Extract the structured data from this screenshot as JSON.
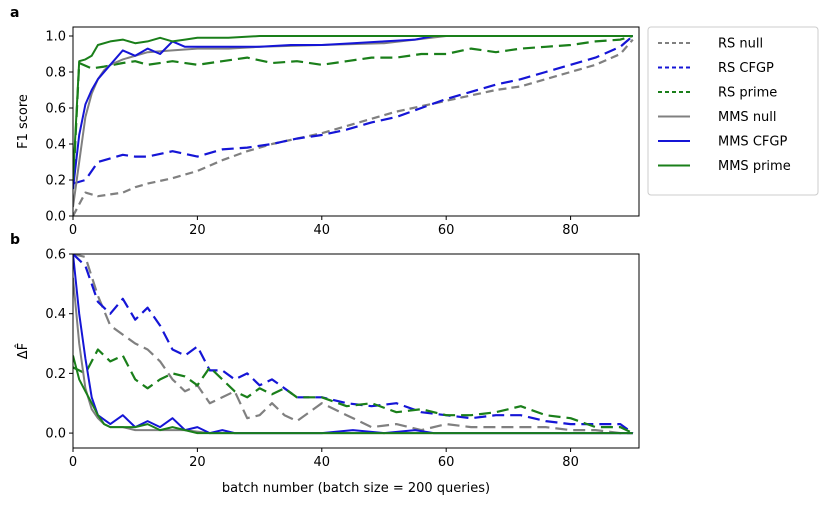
{
  "chart_data": [
    {
      "type": "line",
      "panel_label": "a",
      "xlabel": "",
      "ylabel": "F1 score",
      "xlim": [
        0,
        91
      ],
      "ylim": [
        0,
        1.05
      ],
      "xticks": [
        0,
        20,
        40,
        60,
        80
      ],
      "yticks": [
        0.0,
        0.2,
        0.4,
        0.6,
        0.8,
        1.0
      ],
      "xtick_labels": [
        "0",
        "20",
        "40",
        "60",
        "80"
      ],
      "ytick_labels": [
        "0.0",
        "0.2",
        "0.4",
        "0.6",
        "0.8",
        "1.0"
      ],
      "series": [
        {
          "name": "RS null",
          "color": "#808080",
          "dash": "dotted-dash",
          "x": [
            0,
            2,
            4,
            6,
            8,
            10,
            12,
            16,
            20,
            24,
            28,
            32,
            36,
            40,
            44,
            48,
            52,
            56,
            60,
            64,
            68,
            72,
            76,
            80,
            84,
            88,
            90
          ],
          "y": [
            0.0,
            0.13,
            0.11,
            0.12,
            0.13,
            0.16,
            0.18,
            0.21,
            0.25,
            0.31,
            0.36,
            0.4,
            0.43,
            0.46,
            0.5,
            0.54,
            0.58,
            0.61,
            0.64,
            0.67,
            0.7,
            0.72,
            0.76,
            0.8,
            0.84,
            0.9,
            0.98
          ]
        },
        {
          "name": "RS CFGP",
          "color": "#1515d6",
          "dash": "dashed",
          "x": [
            0,
            2,
            4,
            6,
            8,
            10,
            12,
            16,
            20,
            24,
            28,
            32,
            36,
            40,
            44,
            48,
            52,
            56,
            60,
            64,
            68,
            72,
            76,
            80,
            84,
            88,
            90
          ],
          "y": [
            0.18,
            0.2,
            0.3,
            0.32,
            0.34,
            0.33,
            0.33,
            0.36,
            0.33,
            0.37,
            0.38,
            0.4,
            0.43,
            0.45,
            0.48,
            0.52,
            0.55,
            0.6,
            0.65,
            0.69,
            0.73,
            0.76,
            0.8,
            0.84,
            0.88,
            0.94,
            1.0
          ]
        },
        {
          "name": "RS prime",
          "color": "#1a7f1a",
          "dash": "dashed",
          "x": [
            0,
            1,
            3,
            5,
            8,
            10,
            12,
            16,
            20,
            24,
            28,
            32,
            36,
            40,
            44,
            48,
            52,
            56,
            60,
            64,
            68,
            72,
            76,
            80,
            84,
            88,
            90
          ],
          "y": [
            0.15,
            0.85,
            0.82,
            0.83,
            0.85,
            0.86,
            0.84,
            0.86,
            0.84,
            0.86,
            0.88,
            0.85,
            0.86,
            0.84,
            0.86,
            0.88,
            0.88,
            0.9,
            0.9,
            0.93,
            0.91,
            0.93,
            0.94,
            0.95,
            0.97,
            0.98,
            1.0
          ]
        },
        {
          "name": "MMS null",
          "color": "#808080",
          "dash": "solid",
          "x": [
            0,
            1,
            2,
            3,
            4,
            5,
            6,
            8,
            10,
            12,
            16,
            20,
            25,
            30,
            40,
            50,
            55,
            60,
            70,
            80,
            90
          ],
          "y": [
            0.05,
            0.3,
            0.55,
            0.68,
            0.76,
            0.81,
            0.84,
            0.87,
            0.89,
            0.91,
            0.92,
            0.93,
            0.93,
            0.94,
            0.95,
            0.96,
            0.98,
            1.0,
            1.0,
            1.0,
            1.0
          ]
        },
        {
          "name": "MMS CFGP",
          "color": "#1515d6",
          "dash": "solid",
          "x": [
            0,
            1,
            2,
            3,
            4,
            6,
            8,
            10,
            12,
            14,
            16,
            18,
            20,
            25,
            30,
            35,
            40,
            45,
            50,
            55,
            58,
            60,
            70,
            80,
            90
          ],
          "y": [
            0.15,
            0.45,
            0.62,
            0.7,
            0.76,
            0.84,
            0.92,
            0.89,
            0.93,
            0.9,
            0.97,
            0.94,
            0.94,
            0.94,
            0.94,
            0.95,
            0.95,
            0.96,
            0.97,
            0.98,
            1.0,
            1.0,
            1.0,
            1.0,
            1.0
          ]
        },
        {
          "name": "MMS prime",
          "color": "#1a7f1a",
          "dash": "solid",
          "x": [
            0,
            1,
            2,
            3,
            4,
            6,
            8,
            10,
            12,
            14,
            16,
            18,
            20,
            25,
            30,
            40,
            60,
            90
          ],
          "y": [
            0.2,
            0.86,
            0.87,
            0.89,
            0.95,
            0.97,
            0.98,
            0.96,
            0.97,
            0.99,
            0.97,
            0.98,
            0.99,
            0.99,
            1.0,
            1.0,
            1.0,
            1.0
          ]
        }
      ]
    },
    {
      "type": "line",
      "panel_label": "b",
      "xlabel": "batch number (batch size = 200 queries)",
      "ylabel": "ΔF̂",
      "xlim": [
        0,
        91
      ],
      "ylim": [
        -0.05,
        0.6
      ],
      "xticks": [
        0,
        20,
        40,
        60,
        80
      ],
      "yticks": [
        0.0,
        0.2,
        0.4,
        0.6
      ],
      "xtick_labels": [
        "0",
        "20",
        "40",
        "60",
        "80"
      ],
      "ytick_labels": [
        "0.0",
        "0.2",
        "0.4",
        "0.6"
      ],
      "series": [
        {
          "name": "RS null",
          "color": "#808080",
          "dash": "dashed",
          "x": [
            0,
            2,
            4,
            6,
            8,
            10,
            12,
            14,
            16,
            18,
            20,
            22,
            24,
            26,
            28,
            30,
            32,
            34,
            36,
            40,
            44,
            48,
            52,
            56,
            60,
            64,
            68,
            72,
            76,
            80,
            84,
            88,
            90
          ],
          "y": [
            0.6,
            0.59,
            0.46,
            0.36,
            0.33,
            0.3,
            0.28,
            0.24,
            0.18,
            0.14,
            0.16,
            0.1,
            0.12,
            0.14,
            0.05,
            0.06,
            0.1,
            0.06,
            0.04,
            0.1,
            0.06,
            0.02,
            0.03,
            0.01,
            0.03,
            0.02,
            0.02,
            0.02,
            0.02,
            0.01,
            0.01,
            0.0,
            0.0
          ]
        },
        {
          "name": "RS CFGP",
          "color": "#1515d6",
          "dash": "dashed",
          "x": [
            0,
            2,
            4,
            6,
            8,
            10,
            12,
            14,
            16,
            18,
            20,
            22,
            24,
            26,
            28,
            30,
            32,
            34,
            36,
            40,
            44,
            48,
            52,
            56,
            60,
            64,
            68,
            72,
            76,
            80,
            84,
            88,
            90
          ],
          "y": [
            0.6,
            0.56,
            0.44,
            0.4,
            0.45,
            0.38,
            0.42,
            0.36,
            0.28,
            0.26,
            0.29,
            0.21,
            0.21,
            0.18,
            0.2,
            0.16,
            0.18,
            0.15,
            0.12,
            0.12,
            0.1,
            0.09,
            0.1,
            0.07,
            0.06,
            0.05,
            0.06,
            0.06,
            0.04,
            0.03,
            0.03,
            0.03,
            0.0
          ]
        },
        {
          "name": "RS prime",
          "color": "#1a7f1a",
          "dash": "dashed",
          "x": [
            0,
            2,
            4,
            6,
            8,
            10,
            12,
            14,
            16,
            18,
            20,
            22,
            24,
            26,
            28,
            30,
            32,
            34,
            36,
            40,
            44,
            48,
            52,
            56,
            60,
            64,
            68,
            72,
            76,
            80,
            84,
            88,
            90
          ],
          "y": [
            0.22,
            0.2,
            0.28,
            0.24,
            0.26,
            0.18,
            0.15,
            0.18,
            0.2,
            0.19,
            0.16,
            0.22,
            0.18,
            0.14,
            0.12,
            0.15,
            0.13,
            0.15,
            0.12,
            0.12,
            0.09,
            0.1,
            0.07,
            0.08,
            0.06,
            0.06,
            0.07,
            0.09,
            0.06,
            0.05,
            0.02,
            0.02,
            0.0
          ]
        },
        {
          "name": "MMS null",
          "color": "#808080",
          "dash": "solid",
          "x": [
            0,
            1,
            2,
            3,
            4,
            5,
            6,
            8,
            10,
            14,
            18,
            22,
            30,
            60,
            90
          ],
          "y": [
            0.52,
            0.3,
            0.15,
            0.08,
            0.05,
            0.03,
            0.02,
            0.02,
            0.01,
            0.01,
            0.01,
            0.0,
            0.0,
            0.0,
            0.0
          ]
        },
        {
          "name": "MMS CFGP",
          "color": "#1515d6",
          "dash": "solid",
          "x": [
            0,
            1,
            2,
            3,
            4,
            6,
            8,
            10,
            12,
            14,
            16,
            18,
            20,
            22,
            24,
            26,
            28,
            30,
            40,
            45,
            50,
            55,
            58,
            60,
            90
          ],
          "y": [
            0.6,
            0.4,
            0.25,
            0.12,
            0.06,
            0.03,
            0.06,
            0.02,
            0.04,
            0.02,
            0.05,
            0.01,
            0.02,
            0.0,
            0.01,
            0.0,
            0.0,
            0.0,
            0.0,
            0.01,
            0.0,
            0.01,
            0.0,
            0.0,
            0.0
          ]
        },
        {
          "name": "MMS prime",
          "color": "#1a7f1a",
          "dash": "solid",
          "x": [
            0,
            1,
            2,
            3,
            4,
            5,
            6,
            8,
            10,
            12,
            14,
            16,
            18,
            20,
            25,
            30,
            60,
            90
          ],
          "y": [
            0.26,
            0.18,
            0.14,
            0.1,
            0.06,
            0.03,
            0.02,
            0.02,
            0.02,
            0.03,
            0.01,
            0.02,
            0.01,
            0.0,
            0.0,
            0.0,
            0.0,
            0.0
          ]
        }
      ]
    }
  ],
  "legend": {
    "placement": "upper-right-outside",
    "entries": [
      {
        "label": "RS null",
        "color": "#808080",
        "style": "dotted"
      },
      {
        "label": "RS CFGP",
        "color": "#1515d6",
        "style": "dotted"
      },
      {
        "label": "RS prime",
        "color": "#1a7f1a",
        "style": "dotted"
      },
      {
        "label": "MMS null",
        "color": "#808080",
        "style": "solid"
      },
      {
        "label": "MMS CFGP",
        "color": "#1515d6",
        "style": "solid"
      },
      {
        "label": "MMS prime",
        "color": "#1a7f1a",
        "style": "solid"
      }
    ]
  }
}
